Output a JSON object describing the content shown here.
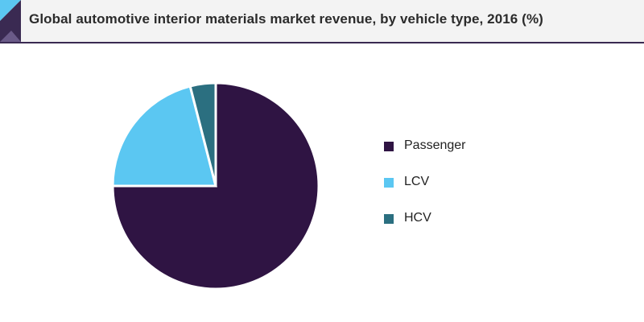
{
  "header": {
    "title": "Global automotive interior materials market revenue, by vehicle type, 2016 (%)"
  },
  "colors": {
    "accent": "#3a2a52",
    "header_bg": "#f3f3f3"
  },
  "chart_data": {
    "type": "pie",
    "title": "Global automotive interior materials market revenue, by vehicle type, 2016 (%)",
    "categories": [
      "Passenger",
      "LCV",
      "HCV"
    ],
    "values": [
      75,
      21,
      4
    ],
    "colors": [
      "#2f1443",
      "#5bc7f2",
      "#2b6f80"
    ],
    "unit": "%",
    "start_angle_deg": 0,
    "direction": "clockwise",
    "legend_position": "right"
  },
  "legend": {
    "items": [
      {
        "label": "Passenger",
        "color": "#2f1443"
      },
      {
        "label": "LCV",
        "color": "#5bc7f2"
      },
      {
        "label": "HCV",
        "color": "#2b6f80"
      }
    ]
  }
}
